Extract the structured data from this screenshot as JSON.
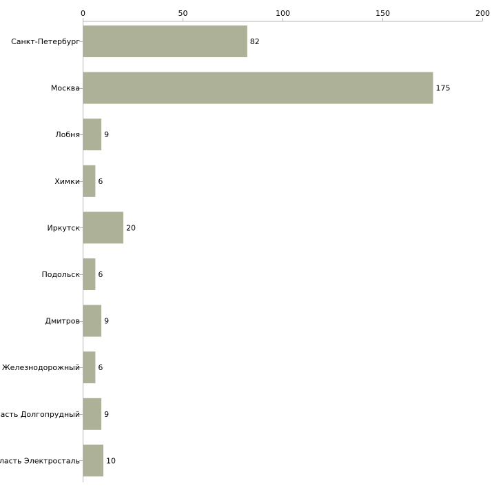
{
  "colors": {
    "bar": "#adb197",
    "axis": "#b4b4b4",
    "text": "#000000",
    "background": "#ffffff"
  },
  "chart_data": {
    "type": "bar",
    "orientation": "horizontal",
    "title": "",
    "xlabel": "",
    "ylabel": "",
    "xlim": [
      0,
      200
    ],
    "x_ticks": [
      0,
      50,
      100,
      150,
      200
    ],
    "x_axis_position": "top",
    "grid": false,
    "legend": "none",
    "categories": [
      "Санкт-Петербург",
      "Москва",
      "Лобня",
      "Химки",
      "Иркутск",
      "Подольск",
      "Дмитров",
      "Московская область Железнодорожный",
      "Московская область Долгопрудный",
      "Московская область Электросталь"
    ],
    "values": [
      82,
      175,
      9,
      6,
      20,
      6,
      9,
      6,
      9,
      10
    ]
  }
}
